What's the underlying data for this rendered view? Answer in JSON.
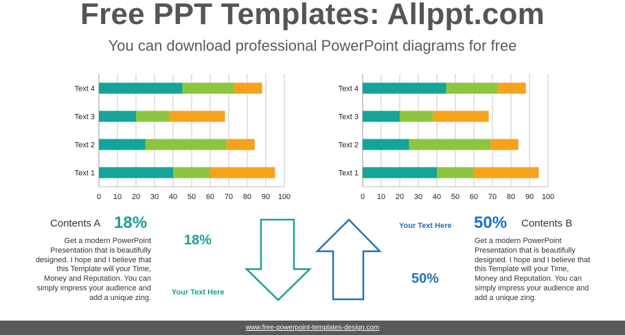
{
  "header": {
    "title": "Free PPT Templates: Allppt.com",
    "subtitle": "You can download professional PowerPoint diagrams for free"
  },
  "colors": {
    "teal": "#14a499",
    "green": "#8cc63f",
    "orange": "#f7a21b",
    "teal_text": "#1b9e97",
    "blue_text": "#1e73be",
    "arrow_left": "#1b9e97",
    "arrow_right": "#1e73be",
    "footer": "#595959"
  },
  "chart_data": [
    {
      "type": "bar",
      "orientation": "horizontal",
      "stacked": true,
      "categories": [
        "Text 1",
        "Text 2",
        "Text 3",
        "Text 4"
      ],
      "series": [
        {
          "values": [
            40,
            25,
            20,
            45
          ]
        },
        {
          "values": [
            20,
            44,
            18,
            28
          ]
        },
        {
          "values": [
            35,
            15,
            30,
            15
          ]
        }
      ],
      "xlim": [
        0,
        100
      ],
      "xticks": [
        "0",
        "10",
        "20",
        "30",
        "40",
        "50",
        "60",
        "70",
        "80",
        "90",
        "100"
      ],
      "grid": true
    },
    {
      "type": "bar",
      "orientation": "horizontal",
      "stacked": true,
      "categories": [
        "Text 1",
        "Text 2",
        "Text 3",
        "Text 4"
      ],
      "series": [
        {
          "values": [
            40,
            25,
            20,
            45
          ]
        },
        {
          "values": [
            20,
            44,
            18,
            28
          ]
        },
        {
          "values": [
            35,
            15,
            30,
            15
          ]
        }
      ],
      "xlim": [
        0,
        100
      ],
      "xticks": [
        "0",
        "10",
        "20",
        "30",
        "40",
        "50",
        "60",
        "70",
        "80",
        "90",
        "100"
      ],
      "grid": true
    }
  ],
  "left_panel": {
    "heading": "Contents A",
    "big_percent": "18%",
    "body": "Get a modern PowerPoint  Presentation that is beautifully designed. I hope and I believe that this Template will your Time, Money and Reputation. You can simply impress your audience and add a unique zing.",
    "arrow_percent": "18%",
    "arrow_note": "Your Text  Here",
    "arrow_icon": "down-arrow-outline"
  },
  "right_panel": {
    "heading": "Contents B",
    "big_percent": "50%",
    "body": "Get a modern PowerPoint Presentation that is beautifully designed. I hope and I believe that this Template will your Time, Money and Reputation. You can simply impress your audience and add a unique zing.",
    "arrow_percent": "50%",
    "arrow_note": "Your Text  Here",
    "arrow_icon": "up-arrow-outline"
  },
  "footer": {
    "link_text": "www.free-powerpoint-templates-design.com"
  }
}
